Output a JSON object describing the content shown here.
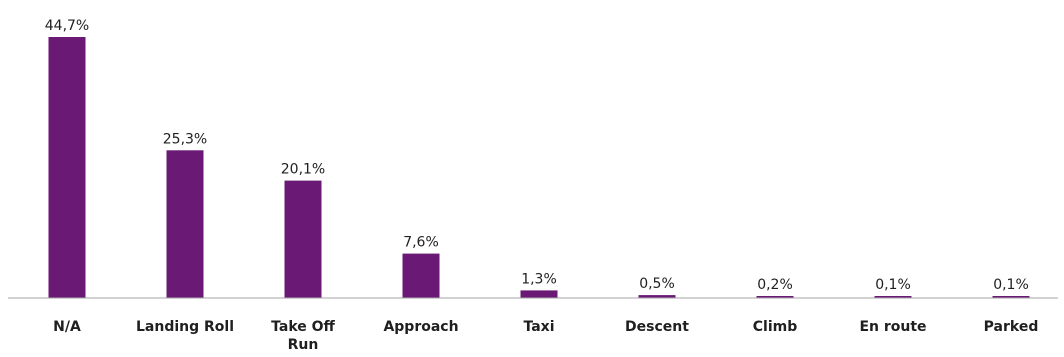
{
  "chart_data": {
    "type": "bar",
    "categories": [
      "N/A",
      "Landing Roll",
      "Take Off Run",
      "Approach",
      "Taxi",
      "Descent",
      "Climb",
      "En route",
      "Parked"
    ],
    "category_lines": [
      [
        "N/A"
      ],
      [
        "Landing Roll"
      ],
      [
        "Take Off",
        "Run"
      ],
      [
        "Approach"
      ],
      [
        "Taxi"
      ],
      [
        "Descent"
      ],
      [
        "Climb"
      ],
      [
        "En route"
      ],
      [
        "Parked"
      ]
    ],
    "values": [
      44.7,
      25.3,
      20.1,
      7.6,
      1.3,
      0.5,
      0.2,
      0.1,
      0.1
    ],
    "value_labels": [
      "44,7%",
      "25,3%",
      "20,1%",
      "7,6%",
      "1,3%",
      "0,5%",
      "0,2%",
      "0,1%",
      "0,1%"
    ],
    "title": "",
    "xlabel": "",
    "ylabel": "",
    "ylim": [
      0,
      44.7
    ],
    "grid": false,
    "legend": "none",
    "colors": {
      "bar": "#6a1a74",
      "axis": "#a6a6a6",
      "text": "#1f1f1f"
    }
  }
}
